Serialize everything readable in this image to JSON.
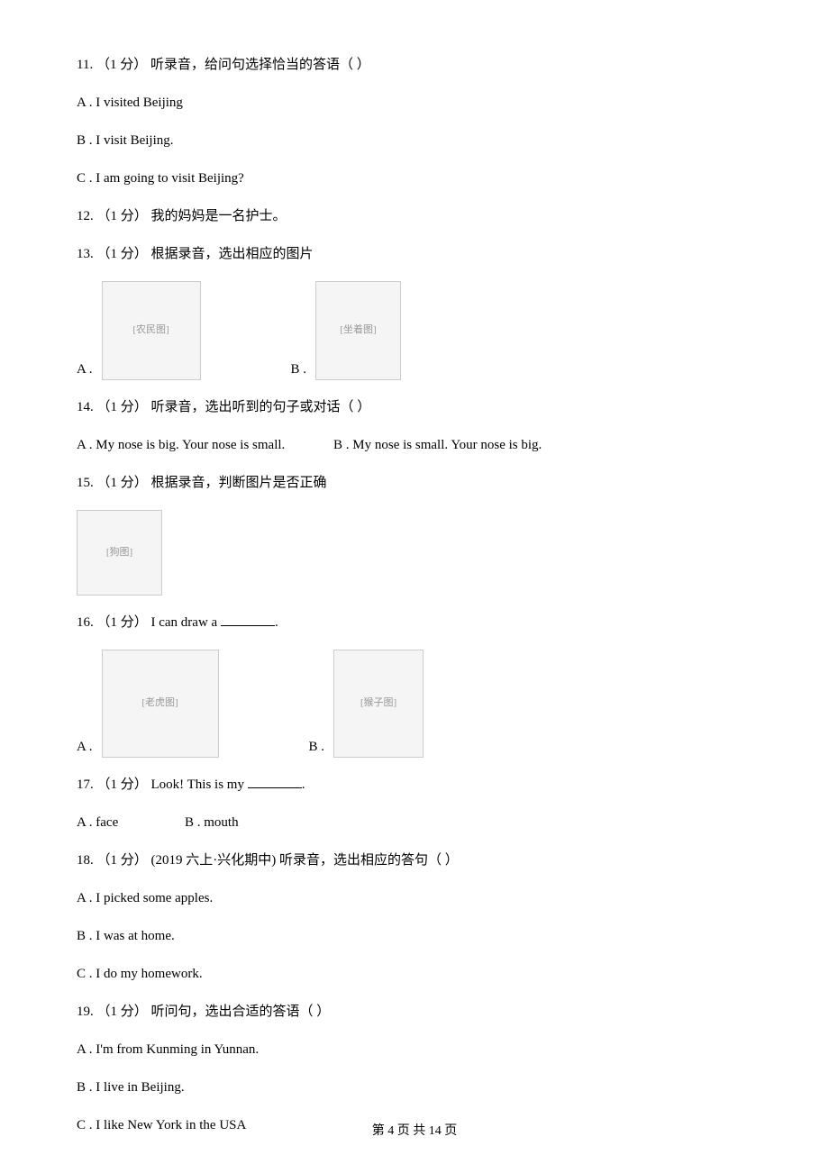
{
  "questions": {
    "q11": {
      "prompt": "11. （1 分） 听录音，给问句选择恰当的答语（    ）",
      "options": {
        "a": "A . I visited Beijing",
        "b": "B . I visit Beijing.",
        "c": "C . I am going to visit Beijing?"
      }
    },
    "q12": {
      "prompt": "12. （1 分） 我的妈妈是一名护士。"
    },
    "q13": {
      "prompt": "13. （1 分） 根据录音，选出相应的图片",
      "options": {
        "a": "A .",
        "b": "B ."
      },
      "images": {
        "a": "farmer-image",
        "b": "sitting-person-image"
      }
    },
    "q14": {
      "prompt": "14. （1 分） 听录音，选出听到的句子或对话（    ）",
      "options": {
        "a": "A . My nose is big. Your nose is small.",
        "b": "B . My nose is small. Your nose is big."
      }
    },
    "q15": {
      "prompt": "15. （1 分）  根据录音，判断图片是否正确",
      "image": "dog-image"
    },
    "q16": {
      "prompt_prefix": "16. （1 分） I can draw a ",
      "prompt_suffix": ".",
      "options": {
        "a": "A .",
        "b": "B ."
      },
      "images": {
        "a": "tiger-image",
        "b": "monkey-image"
      }
    },
    "q17": {
      "prompt_prefix": "17. （1 分） Look! This is my ",
      "prompt_suffix": ".",
      "options": {
        "a": "A . face",
        "b": "B . mouth"
      }
    },
    "q18": {
      "prompt": "18. （1 分） (2019 六上·兴化期中) 听录音，选出相应的答句（    ）",
      "options": {
        "a": "A . I picked some apples.",
        "b": "B . I was at home.",
        "c": "C . I do my homework."
      }
    },
    "q19": {
      "prompt": "19.  （1 分） 听问句，选出合适的答语（    ）",
      "options": {
        "a": "A . I'm from Kunming in Yunnan.",
        "b": "B . I live in Beijing.",
        "c": "C . I like New York in the USA"
      }
    }
  },
  "footer": "第 4 页 共 14 页",
  "image_labels": {
    "farmer": "[农民图]",
    "sitting": "[坐着图]",
    "dog": "[狗图]",
    "tiger": "[老虎图]",
    "monkey": "[猴子图]"
  }
}
